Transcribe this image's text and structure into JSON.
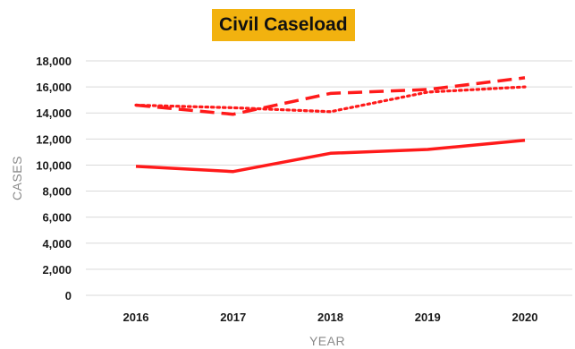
{
  "chart_data": {
    "type": "line",
    "title": "Civil Caseload",
    "xlabel": "YEAR",
    "ylabel": "CASES",
    "categories": [
      "2016",
      "2017",
      "2018",
      "2019",
      "2020"
    ],
    "y_ticks": [
      "0",
      "2,000",
      "4,000",
      "6,000",
      "8,000",
      "10,000",
      "12,000",
      "14,000",
      "16,000",
      "18,000"
    ],
    "ylim": [
      0,
      18000
    ],
    "grid": true,
    "legend": "none",
    "series": [
      {
        "style": "solid",
        "color": "#ff1a1a",
        "values": [
          9900,
          9500,
          10900,
          11200,
          11900
        ]
      },
      {
        "style": "dashed",
        "color": "#ff1a1a",
        "values": [
          14600,
          13900,
          15500,
          15800,
          16700
        ]
      },
      {
        "style": "dotted",
        "color": "#ff1a1a",
        "values": [
          14600,
          14400,
          14100,
          15600,
          16000
        ]
      }
    ]
  }
}
